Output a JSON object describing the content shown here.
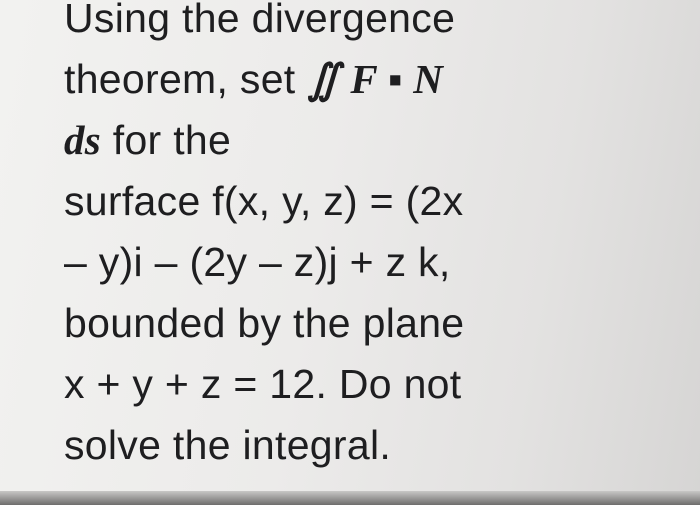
{
  "problem": {
    "lines": [
      [
        "Using the divergence"
      ],
      [
        "theorem, set",
        "∬ F ▪ N"
      ],
      [
        "ds",
        "for the"
      ],
      [
        "surface f(x, y, z) = (2x"
      ],
      [
        "– y)i – (2y – z)j + z k,"
      ],
      [
        "bounded by the plane"
      ],
      [
        "x + y + z = 12. Do not"
      ],
      [
        "solve the integral."
      ]
    ]
  }
}
